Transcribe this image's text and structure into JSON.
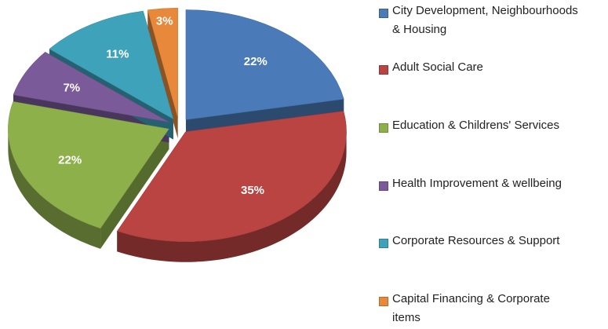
{
  "chart_data": {
    "type": "pie",
    "categories": [
      "City Development, Neighbourhoods & Housing",
      "Adult Social Care",
      "Education & Childrens' Services",
      "Health Improvement & wellbeing",
      "Corporate Resources & Support",
      "Capital Financing & Corporate items"
    ],
    "values": [
      22,
      35,
      22,
      7,
      11,
      3
    ],
    "value_labels": [
      "22%",
      "35%",
      "22%",
      "7%",
      "11%",
      "3%"
    ],
    "colors": [
      "#4a7ab8",
      "#b94441",
      "#8eb04b",
      "#7a5a99",
      "#3ea2bb",
      "#e8883a"
    ],
    "legend": "right"
  }
}
